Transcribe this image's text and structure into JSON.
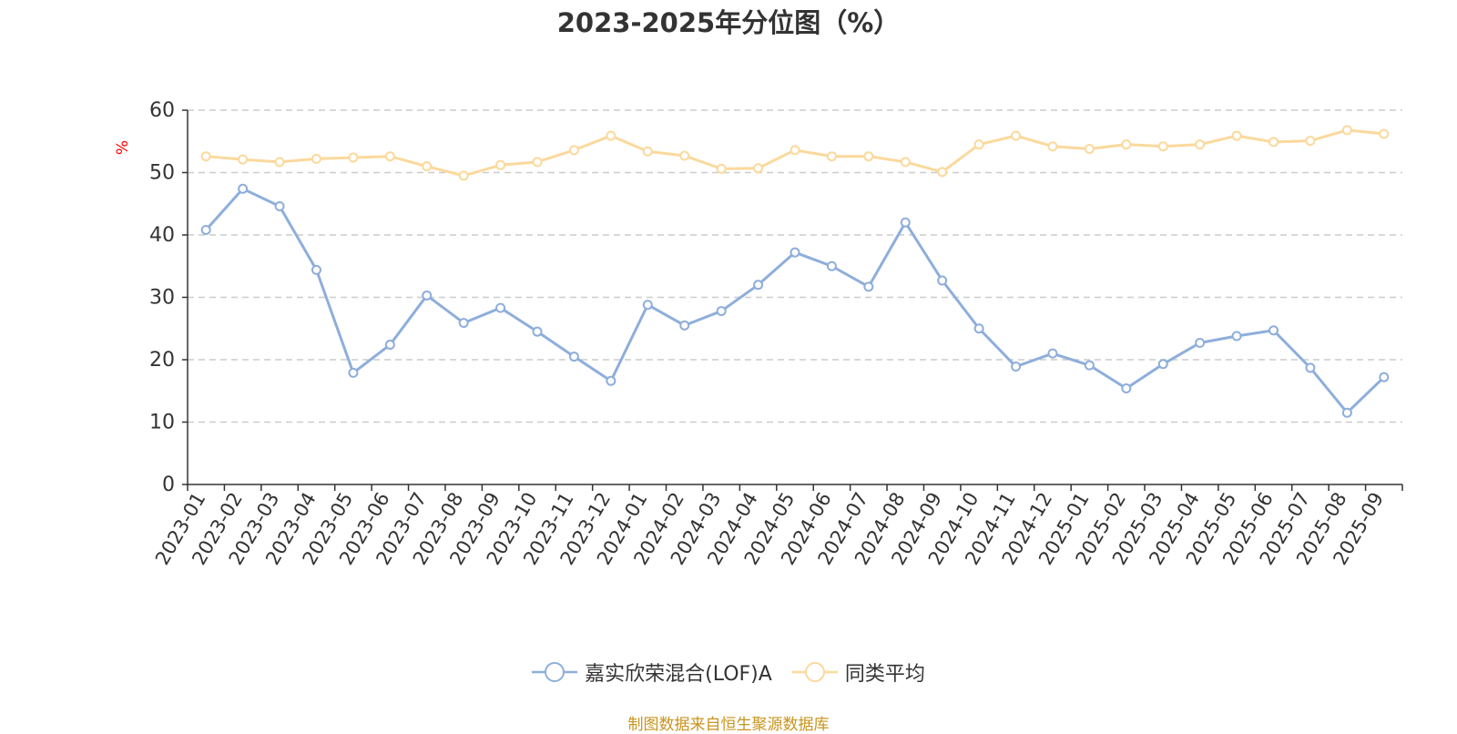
{
  "chart_data": {
    "type": "line",
    "title": "2023-2025年分位图（%）",
    "ylabel": "%",
    "ylim": [
      0,
      60
    ],
    "yticks": [
      0,
      10,
      20,
      30,
      40,
      50,
      60
    ],
    "grid": true,
    "legend_position": "bottom-center",
    "categories": [
      "2023-01",
      "2023-02",
      "2023-03",
      "2023-04",
      "2023-05",
      "2023-06",
      "2023-07",
      "2023-08",
      "2023-09",
      "2023-10",
      "2023-11",
      "2023-12",
      "2024-01",
      "2024-02",
      "2024-03",
      "2024-04",
      "2024-05",
      "2024-06",
      "2024-07",
      "2024-08",
      "2024-09",
      "2024-10",
      "2024-11",
      "2024-12",
      "2025-01",
      "2025-02",
      "2025-03",
      "2025-04",
      "2025-05",
      "2025-06",
      "2025-07",
      "2025-08",
      "2025-09"
    ],
    "series": [
      {
        "name": "嘉实欣荣混合(LOF)A",
        "color": "#8eaedb",
        "values": [
          40.8,
          47.4,
          44.6,
          34.4,
          17.9,
          22.4,
          30.3,
          25.9,
          28.3,
          24.5,
          20.5,
          16.6,
          28.8,
          25.5,
          27.8,
          32.0,
          37.2,
          35.0,
          31.7,
          42.0,
          32.7,
          25.0,
          18.9,
          21.0,
          19.1,
          15.4,
          19.3,
          22.7,
          23.8,
          24.7,
          18.7,
          11.5,
          17.2
        ]
      },
      {
        "name": "同类平均",
        "color": "#fbd99c",
        "values": [
          52.6,
          52.1,
          51.7,
          52.2,
          52.4,
          52.6,
          51.0,
          49.5,
          51.2,
          51.7,
          53.6,
          55.9,
          53.4,
          52.7,
          50.6,
          50.7,
          53.6,
          52.6,
          52.6,
          51.7,
          50.1,
          54.5,
          55.9,
          54.2,
          53.8,
          54.5,
          54.2,
          54.5,
          55.9,
          54.9,
          55.1,
          56.8,
          56.2
        ]
      }
    ]
  },
  "source_note": "制图数据来自恒生聚源数据库"
}
